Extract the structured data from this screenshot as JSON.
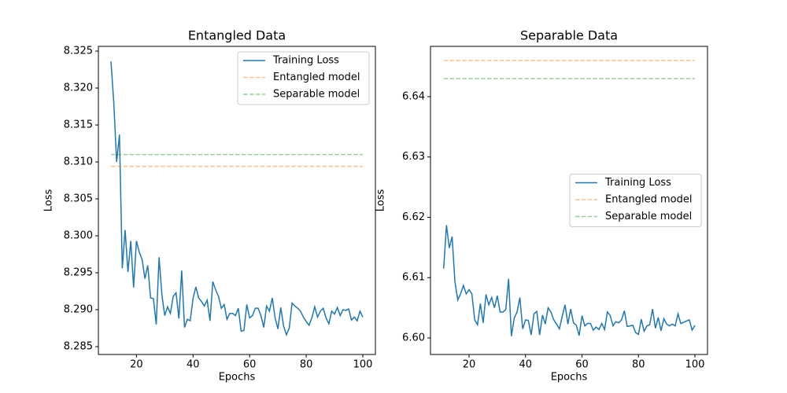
{
  "chart_data": [
    {
      "type": "line",
      "title": "Entangled Data",
      "xlabel": "Epochs",
      "ylabel": "Loss",
      "xlim": [
        6.55,
        104.45
      ],
      "ylim": [
        8.28394,
        8.32564
      ],
      "xticks": [
        20,
        40,
        60,
        80,
        100
      ],
      "yticks": [
        8.285,
        {
          "value": 8.29,
          "label": "8.290"
        },
        8.295,
        {
          "value": 8.3,
          "label": "8.300"
        },
        8.305,
        {
          "value": 8.31,
          "label": "8.310"
        },
        8.315,
        {
          "value": 8.32,
          "label": "8.320"
        },
        8.325
      ],
      "legend": "upper right",
      "x": [
        11,
        12,
        13,
        14,
        15,
        16,
        17,
        18,
        19,
        20,
        21,
        22,
        23,
        24,
        25,
        26,
        27,
        28,
        29,
        30,
        31,
        32,
        33,
        34,
        35,
        36,
        37,
        38,
        39,
        40,
        41,
        42,
        43,
        44,
        45,
        46,
        47,
        48,
        49,
        50,
        51,
        52,
        53,
        54,
        55,
        56,
        57,
        58,
        59,
        60,
        61,
        62,
        63,
        64,
        65,
        66,
        67,
        68,
        69,
        70,
        71,
        72,
        73,
        74,
        75,
        76,
        77,
        78,
        79,
        80,
        81,
        82,
        83,
        84,
        85,
        86,
        87,
        88,
        89,
        90,
        91,
        92,
        93,
        94,
        95,
        96,
        97,
        98,
        99,
        100
      ],
      "series": [
        {
          "name": "Training Loss",
          "color": "#1f77b4",
          "linestyle": "solid",
          "alpha": 1,
          "values": [
            8.3236,
            8.318,
            8.31,
            8.3137,
            8.2956,
            8.3008,
            8.2951,
            8.2993,
            8.293,
            8.2993,
            8.2978,
            8.2968,
            8.2942,
            8.296,
            8.2916,
            8.2915,
            8.288,
            8.2971,
            8.292,
            8.2892,
            8.2904,
            8.2895,
            8.2918,
            8.2923,
            8.2888,
            8.2953,
            8.2876,
            8.2887,
            8.2885,
            8.2915,
            8.2931,
            8.2916,
            8.2911,
            8.2905,
            8.2913,
            8.2885,
            8.2938,
            8.2927,
            8.2918,
            8.2902,
            8.2907,
            8.2887,
            8.2895,
            8.2895,
            8.2892,
            8.2902,
            8.2871,
            8.2872,
            8.2907,
            8.2889,
            8.2892,
            8.2902,
            8.2902,
            8.2892,
            8.2876,
            8.2905,
            8.2898,
            8.2916,
            8.2889,
            8.2874,
            8.2903,
            8.2878,
            8.2866,
            8.2875,
            8.2909,
            8.2905,
            8.2902,
            8.2898,
            8.289,
            8.2884,
            8.2879,
            8.2889,
            8.2904,
            8.289,
            8.2898,
            8.2902,
            8.2889,
            8.2881,
            8.2898,
            8.2894,
            8.2903,
            8.2892,
            8.29,
            8.2899,
            8.2901,
            8.2886,
            8.289,
            8.2885,
            8.2898,
            8.289
          ]
        },
        {
          "name": "Entangled model",
          "color": "#ff7f0e",
          "linestyle": "dashed",
          "alpha": 0.5,
          "x": [
            11,
            100
          ],
          "values": [
            8.3094,
            8.3094
          ]
        },
        {
          "name": "Separable model",
          "color": "#2ca02c",
          "linestyle": "dashed",
          "alpha": 0.5,
          "x": [
            11,
            100
          ],
          "values": [
            8.311,
            8.311
          ]
        }
      ]
    },
    {
      "type": "line",
      "title": "Separable Data",
      "xlabel": "Epochs",
      "ylabel": "Loss",
      "xlim": [
        6.34,
        104.46
      ],
      "ylim": [
        6.59726,
        6.64834
      ],
      "xticks": [
        20,
        40,
        60,
        80,
        100
      ],
      "yticks": [
        {
          "value": 6.6,
          "label": "6.60"
        },
        6.61,
        6.62,
        6.63,
        6.64
      ],
      "legend": "center right",
      "x": [
        11,
        12,
        13,
        14,
        15,
        16,
        17,
        18,
        19,
        20,
        21,
        22,
        23,
        24,
        25,
        26,
        27,
        28,
        29,
        30,
        31,
        32,
        33,
        34,
        35,
        36,
        37,
        38,
        39,
        40,
        41,
        42,
        43,
        44,
        45,
        46,
        47,
        48,
        49,
        50,
        51,
        52,
        53,
        54,
        55,
        56,
        57,
        58,
        59,
        60,
        61,
        62,
        63,
        64,
        65,
        66,
        67,
        68,
        69,
        70,
        71,
        72,
        73,
        74,
        75,
        76,
        77,
        78,
        79,
        80,
        81,
        82,
        83,
        84,
        85,
        86,
        87,
        88,
        89,
        90,
        91,
        92,
        93,
        94,
        95,
        96,
        97,
        98,
        99,
        100
      ],
      "series": [
        {
          "name": "Training Loss",
          "color": "#1f77b4",
          "linestyle": "solid",
          "alpha": 1,
          "values": [
            6.6115,
            6.6187,
            6.6149,
            6.6168,
            6.6093,
            6.6063,
            6.6073,
            6.6087,
            6.6073,
            6.608,
            6.6073,
            6.603,
            6.6022,
            6.6057,
            6.6025,
            6.6072,
            6.6055,
            6.6067,
            6.605,
            6.607,
            6.6043,
            6.6043,
            6.6047,
            6.6098,
            6.6003,
            6.6033,
            6.6043,
            6.6067,
            6.6015,
            6.603,
            6.6029,
            6.6005,
            6.604,
            6.6044,
            6.6005,
            6.6038,
            6.6023,
            6.605,
            6.6043,
            6.603,
            6.6023,
            6.6015,
            6.6036,
            6.6055,
            6.6023,
            6.6048,
            6.6025,
            6.6021,
            6.6004,
            6.6037,
            6.602,
            6.6024,
            6.6024,
            6.6013,
            6.6018,
            6.6014,
            6.6024,
            6.6014,
            6.6043,
            6.6037,
            6.602,
            6.6027,
            6.6025,
            6.603,
            6.6045,
            6.6019,
            6.602,
            6.6021,
            6.6009,
            6.6006,
            6.6031,
            6.6011,
            6.602,
            6.6022,
            6.6048,
            6.6016,
            6.6034,
            6.6012,
            6.6032,
            6.6023,
            6.602,
            6.6023,
            6.602,
            6.604,
            6.6024,
            6.6026,
            6.6028,
            6.603,
            6.6013,
            6.6021
          ]
        },
        {
          "name": "Entangled model",
          "color": "#ff7f0e",
          "linestyle": "dashed",
          "alpha": 0.5,
          "x": [
            11,
            100
          ],
          "values": [
            6.646,
            6.646
          ]
        },
        {
          "name": "Separable model",
          "color": "#2ca02c",
          "linestyle": "dashed",
          "alpha": 0.5,
          "x": [
            11,
            100
          ],
          "values": [
            6.643,
            6.643
          ]
        }
      ]
    }
  ]
}
